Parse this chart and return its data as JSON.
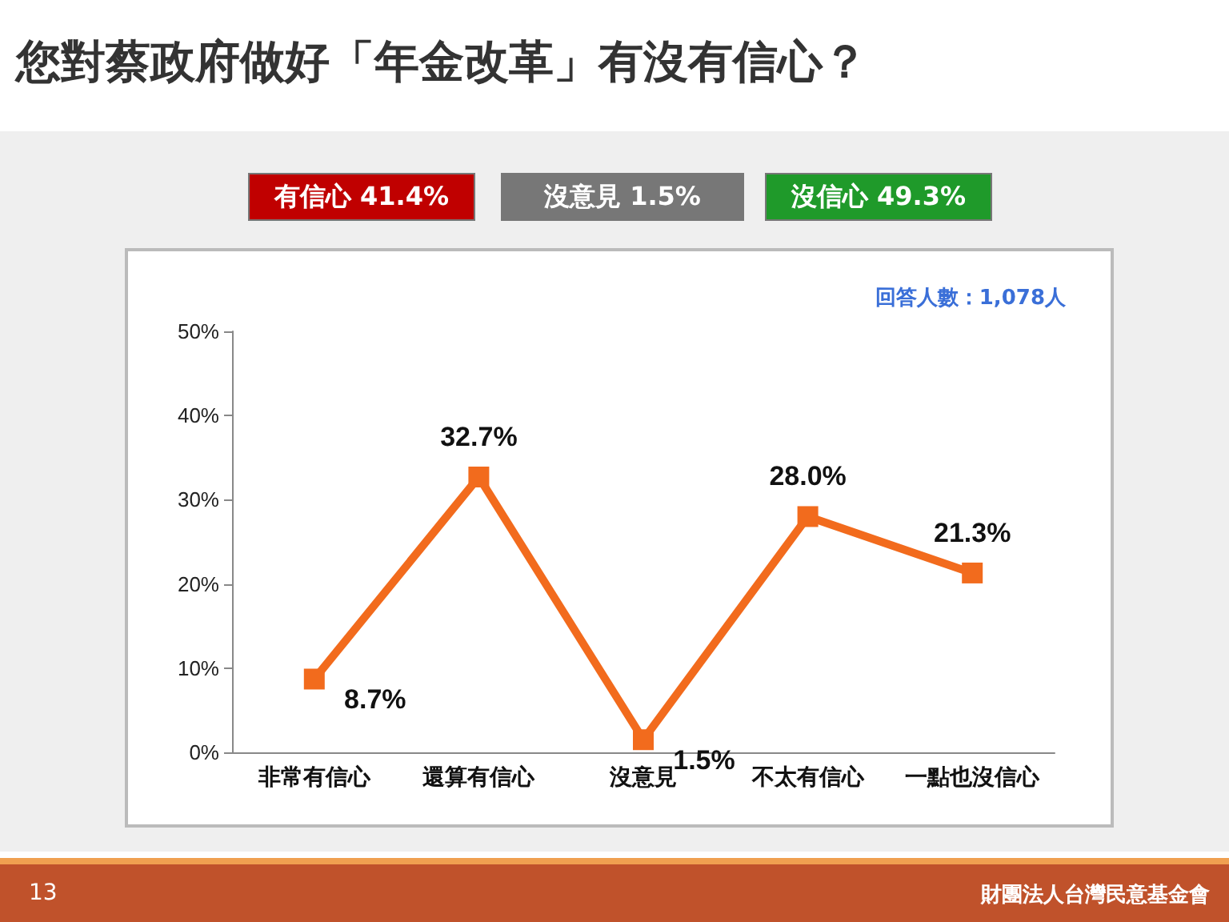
{
  "chart_data": {
    "type": "line",
    "title": "您對蔡政府做好「年金改革」有沒有信心？",
    "categories": [
      "非常有信心",
      "還算有信心",
      "沒意見",
      "不太有信心",
      "一點也沒信心"
    ],
    "series": [
      {
        "color": "#f26b1d",
        "values": [
          8.7,
          32.7,
          1.5,
          28.0,
          21.3
        ],
        "value_labels": [
          "8.7%",
          "32.7%",
          "1.5%",
          "28.0%",
          "21.3%"
        ]
      }
    ],
    "ylim": [
      0,
      50
    ],
    "yticks": [
      {
        "value": 0,
        "label": "0%"
      },
      {
        "value": 10,
        "label": "10%"
      },
      {
        "value": 20,
        "label": "20%"
      },
      {
        "value": 30,
        "label": "30%"
      },
      {
        "value": 40,
        "label": "40%"
      },
      {
        "value": 50,
        "label": "50%"
      }
    ],
    "marker": "square",
    "grid": false,
    "annotations": [
      "有信心 41.4%",
      "沒意見 1.5%",
      "沒信心 49.3%",
      "回答人數：1,078人",
      "13",
      "財團法人台灣民意基金會"
    ]
  }
}
